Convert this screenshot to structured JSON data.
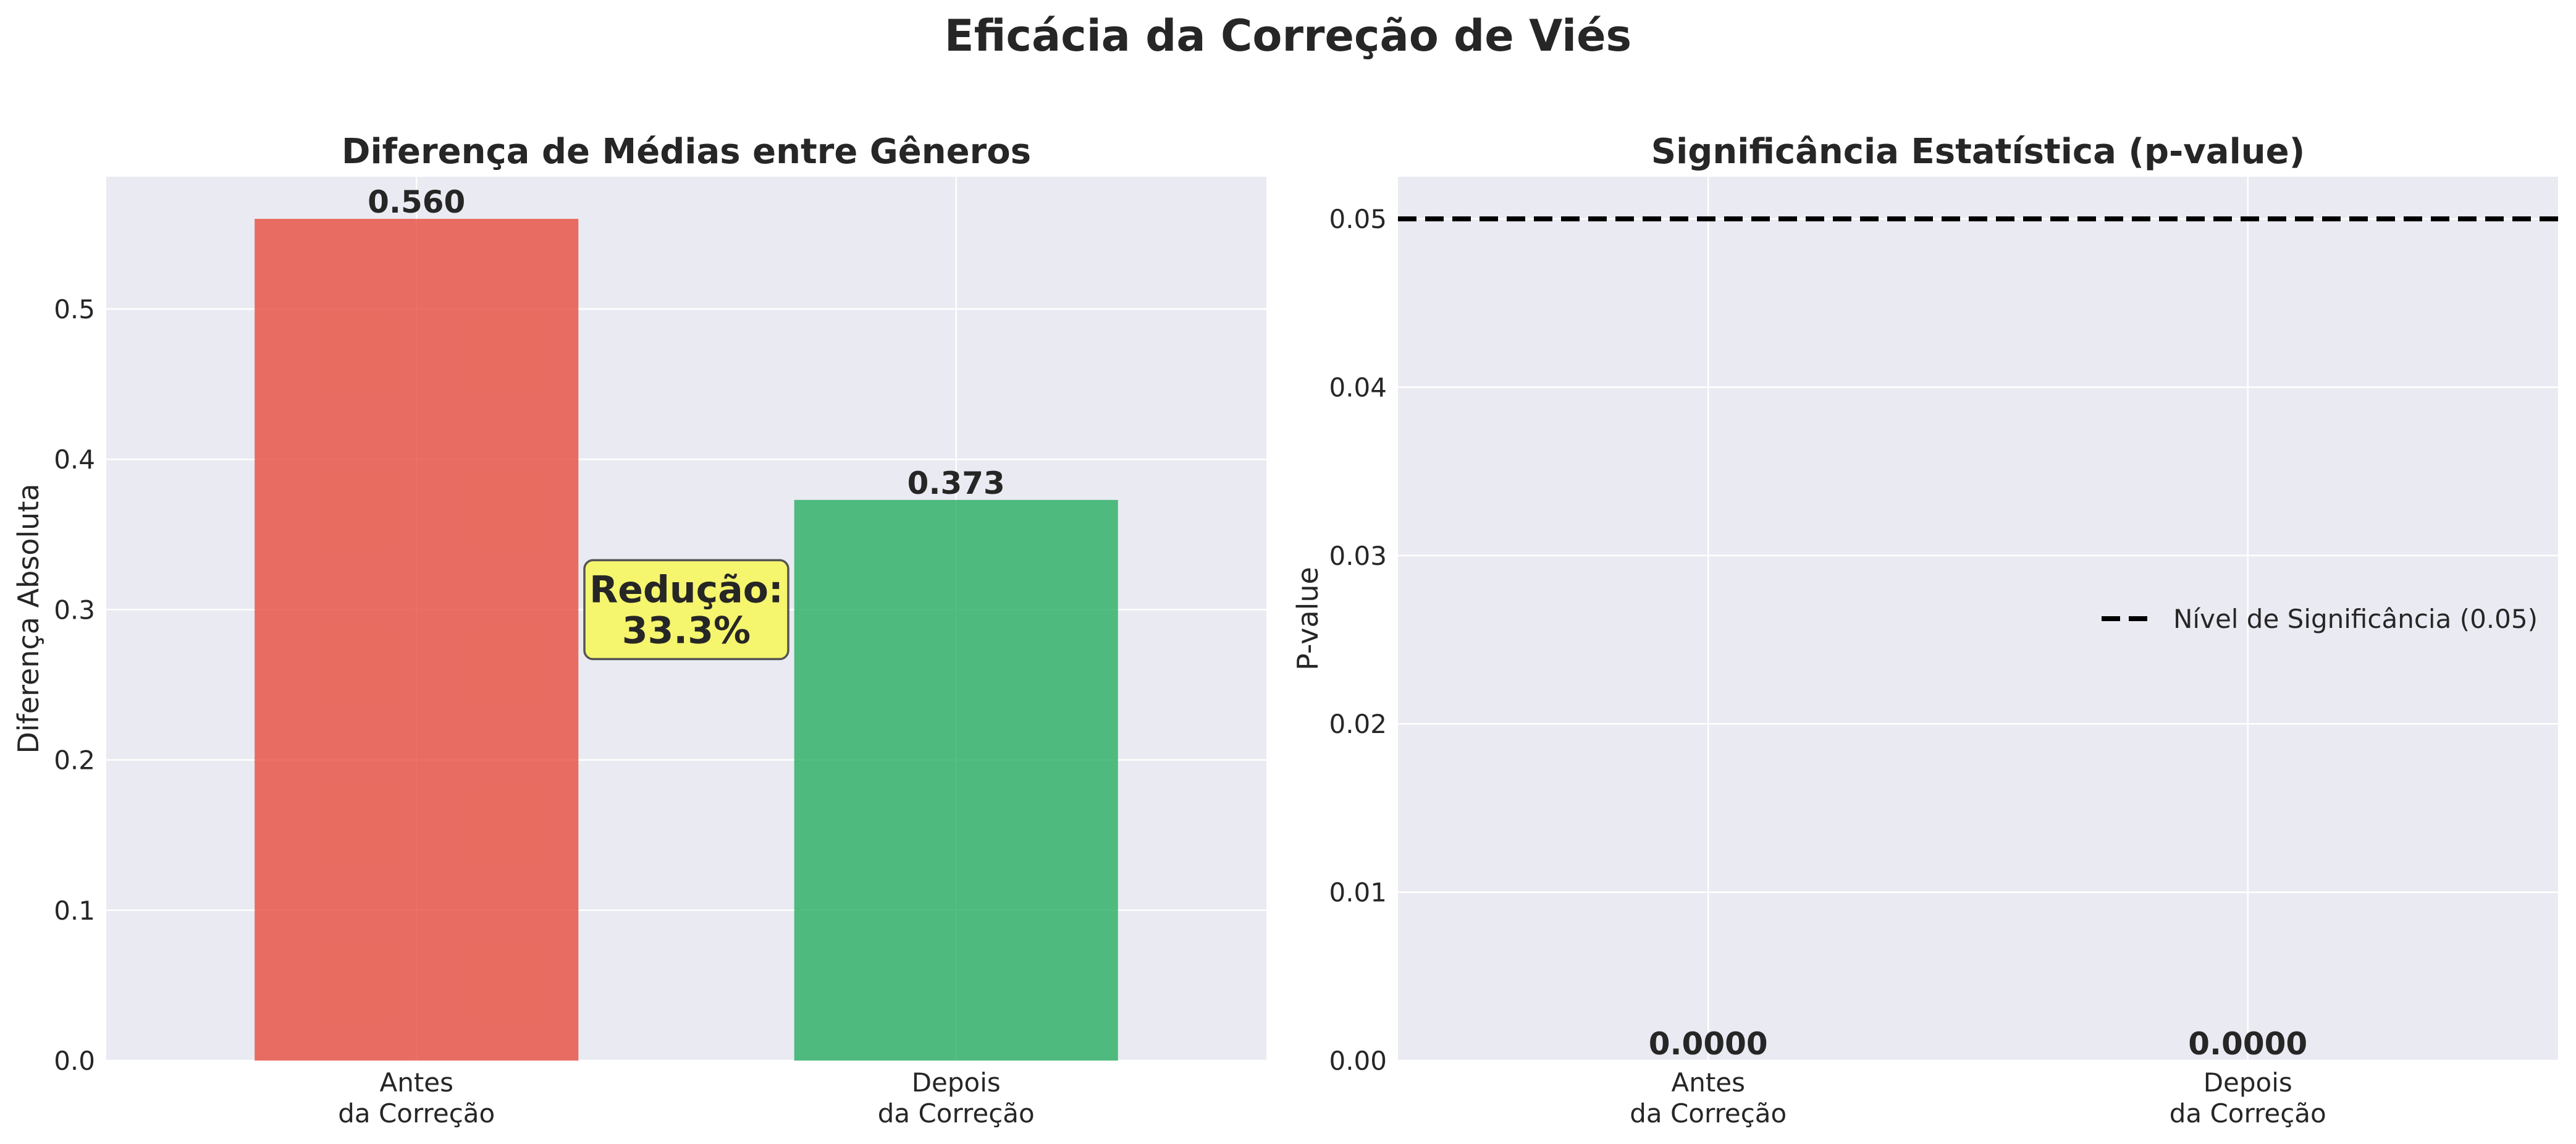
{
  "figure": {
    "suptitle": "Eficácia da Correção de Viés"
  },
  "chart_data": [
    {
      "type": "bar",
      "title": "Diferença de Médias entre Gêneros",
      "xlabel": "",
      "ylabel": "Diferença Absoluta",
      "categories": [
        "Antes\nda Correção",
        "Depois\nda Correção"
      ],
      "category_lines": [
        [
          "Antes",
          "da Correção"
        ],
        [
          "Depois",
          "da Correção"
        ]
      ],
      "values": [
        0.56,
        0.373
      ],
      "value_labels": [
        "0.560",
        "0.373"
      ],
      "colors": [
        "#e74c3c",
        "#27ae60"
      ],
      "ylim": [
        0,
        0.588
      ],
      "yticks": [
        0.0,
        0.1,
        0.2,
        0.3,
        0.4,
        0.5
      ],
      "ytick_labels": [
        "0.0",
        "0.1",
        "0.2",
        "0.3",
        "0.4",
        "0.5"
      ],
      "grid": true,
      "annotation": {
        "lines": [
          "Redução:",
          "33.3%"
        ],
        "box_color": "#f5f56e"
      }
    },
    {
      "type": "bar",
      "title": "Significância Estatística (p-value)",
      "xlabel": "",
      "ylabel": "P-value",
      "categories": [
        "Antes\nda Correção",
        "Depois\nda Correção"
      ],
      "category_lines": [
        [
          "Antes",
          "da Correção"
        ],
        [
          "Depois",
          "da Correção"
        ]
      ],
      "values": [
        0.0,
        0.0
      ],
      "value_labels": [
        "0.0000",
        "0.0000"
      ],
      "ylim": [
        0,
        0.0525
      ],
      "yticks": [
        0.0,
        0.01,
        0.02,
        0.03,
        0.04,
        0.05
      ],
      "ytick_labels": [
        "0.00",
        "0.01",
        "0.02",
        "0.03",
        "0.04",
        "0.05"
      ],
      "grid": true,
      "reference_line": {
        "y": 0.05,
        "style": "dashed",
        "color": "#000000",
        "label": "Nível de Significância (0.05)"
      },
      "legend_position": "center-right"
    }
  ]
}
